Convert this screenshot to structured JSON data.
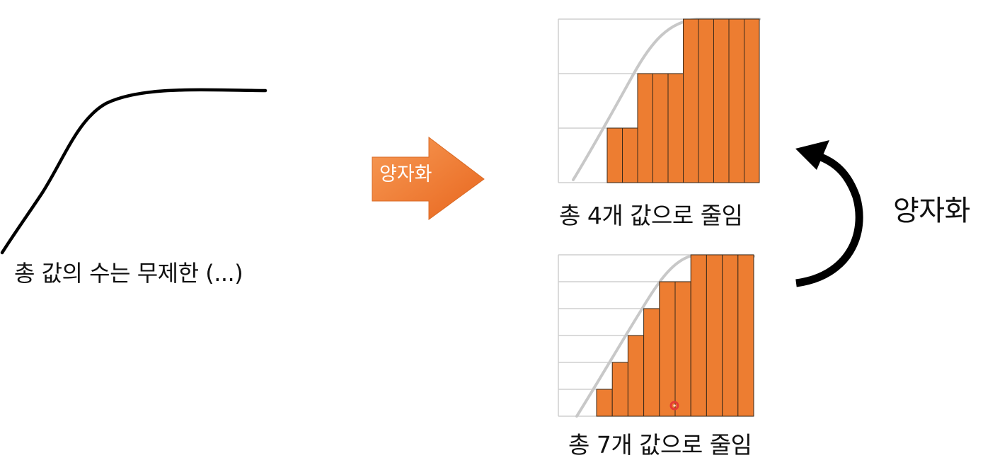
{
  "labels": {
    "continuous": "총 값의 수는 무제한 (...)",
    "quantize_arrow": "양자화",
    "reduced_4": "총 4개 값으로 줄임",
    "reduced_7": "총 7개 값으로 줄임",
    "quantize_right": "양자화"
  },
  "colors": {
    "bar_fill": "#ED7D31",
    "bar_stroke": "#3a2a1a",
    "grid": "#cfcfcf",
    "reference_curve": "#c8c8c8",
    "continuous_curve": "#000000",
    "arrow_orange_light": "#F79A55",
    "arrow_orange_dark": "#E8661E",
    "curved_arrow": "#000000",
    "pointer_dot": "#e53935"
  },
  "icons": {
    "block_arrow": "right-block-arrow",
    "curved_arrow": "curved-up-arrow"
  },
  "chart_data": [
    {
      "type": "bar",
      "levels": 4,
      "values": [
        1,
        1,
        2,
        2,
        2,
        3,
        3,
        3,
        3,
        3
      ],
      "ylim": [
        0,
        3
      ],
      "grid": true
    },
    {
      "type": "bar",
      "levels": 7,
      "values": [
        1,
        2,
        3,
        4,
        5,
        5,
        6,
        6,
        6,
        6
      ],
      "ylim": [
        0,
        6
      ],
      "grid": true
    }
  ]
}
